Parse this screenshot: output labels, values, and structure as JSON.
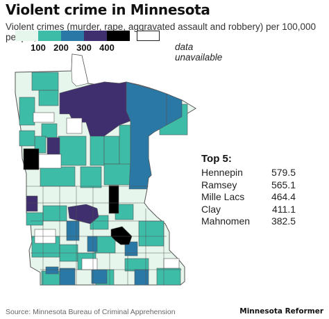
{
  "header": {
    "title": "Violent crime in Minnesota",
    "subtitle": "Violent crimes (murder, rape, aggravated assault and robbery) per 100,000 people, 2021"
  },
  "legend": {
    "ticks": [
      "100",
      "200",
      "300",
      "400"
    ],
    "na_label": "data unavailable",
    "colors": [
      "#e6f6ec",
      "#3dbca8",
      "#2a78a5",
      "#3f2f6e",
      "#000000",
      "#ffffff"
    ]
  },
  "top5": {
    "heading": "Top 5:",
    "rows": [
      {
        "county": "Hennepin",
        "value": "579.5"
      },
      {
        "county": "Ramsey",
        "value": "565.1"
      },
      {
        "county": "Mille Lacs",
        "value": "464.4"
      },
      {
        "county": "Clay",
        "value": "411.1"
      },
      {
        "county": "Mahnomen",
        "value": "382.5"
      }
    ]
  },
  "footer": {
    "source": "Source: Minnesota Bureau of Criminal Apprehension",
    "brand": "Minnesota Reformer"
  }
}
